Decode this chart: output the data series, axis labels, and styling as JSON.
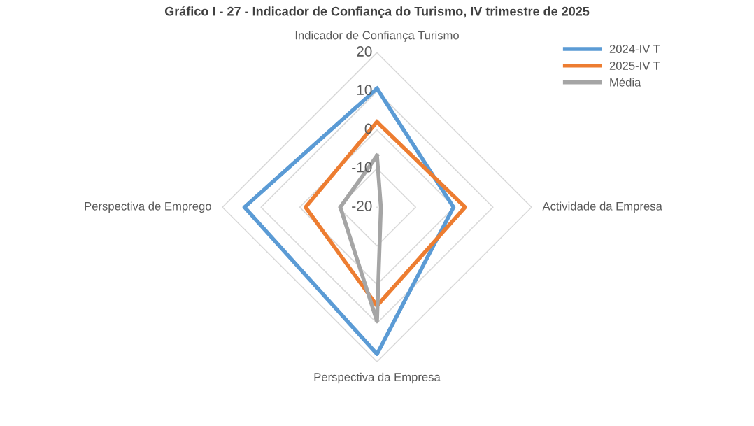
{
  "chart_data": {
    "type": "radar",
    "title": "Gráfico I - 27 - Indicador de Confiança do Turismo, IV trimestre de 2025",
    "categories": [
      "Indicador de Confiança Turismo",
      "Actividade da Empresa",
      "Perspectiva da Empresa",
      "Perspectiva de Emprego"
    ],
    "series": [
      {
        "name": "2024-IV T",
        "color": "#5b9bd5",
        "values": [
          10.7,
          -0.2,
          18,
          14.3
        ]
      },
      {
        "name": "2025-IV T",
        "color": "#ed7d31",
        "values": [
          2.1,
          2.8,
          5.5,
          -1.5
        ]
      },
      {
        "name": "Média",
        "color": "#a5a5a5",
        "values": [
          -6.7,
          -19,
          9.5,
          -10.5
        ]
      }
    ],
    "ylim": [
      -20,
      20
    ],
    "yticks": [
      -20,
      -10,
      0,
      10,
      20
    ],
    "grid": true,
    "legend": "top right",
    "marker": "none",
    "line_style": "solid"
  }
}
